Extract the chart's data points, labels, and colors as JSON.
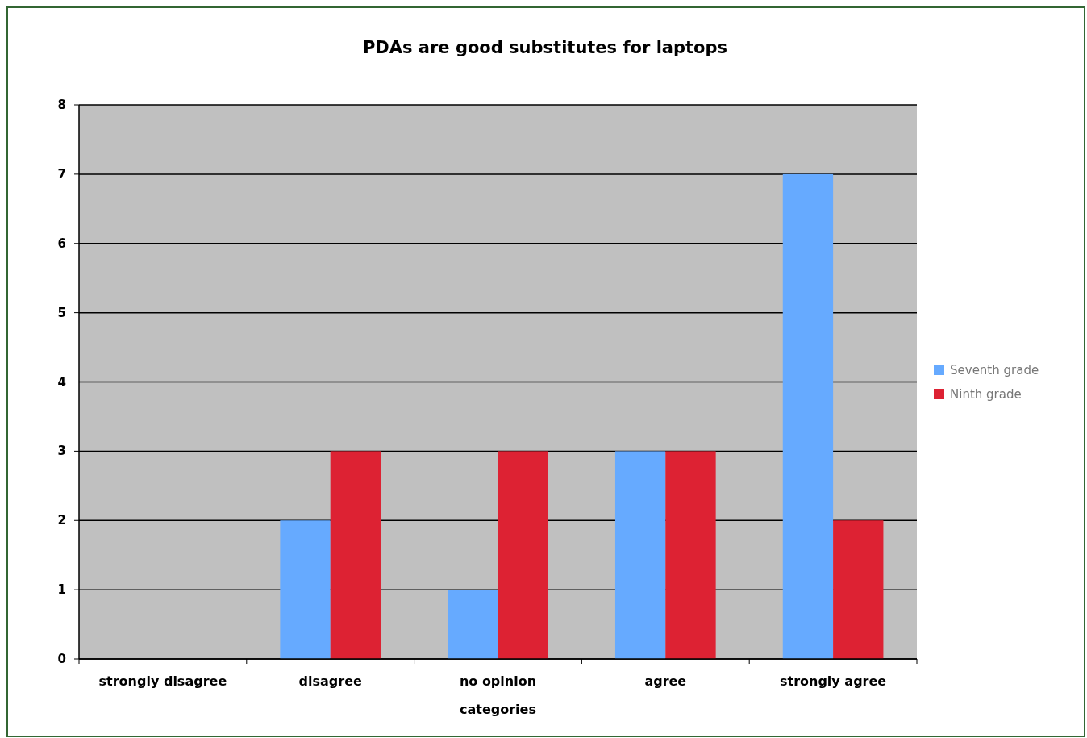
{
  "chart_data": {
    "type": "bar",
    "title": "PDAs are good substitutes for laptops",
    "xlabel": "categories",
    "categories": [
      "strongly disagree",
      "disagree",
      "no opinion",
      "agree",
      "strongly agree"
    ],
    "series": [
      {
        "name": "Seventh grade",
        "color": "#66aaff",
        "values": [
          0,
          2,
          1,
          3,
          7
        ]
      },
      {
        "name": "Ninth grade",
        "color": "#dd2233",
        "values": [
          0,
          3,
          3,
          3,
          2
        ]
      }
    ],
    "ylim": [
      0,
      8
    ],
    "yticks": [
      0,
      1,
      2,
      3,
      4,
      5,
      6,
      7,
      8
    ],
    "grid": "y",
    "legend": "right"
  }
}
